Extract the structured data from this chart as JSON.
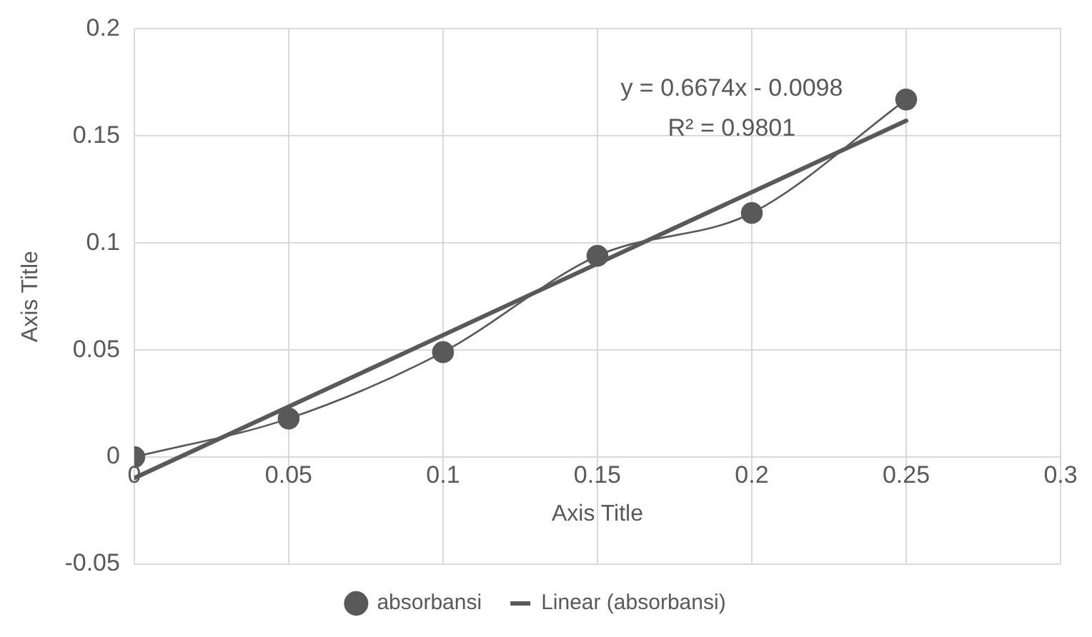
{
  "chart_data": {
    "type": "scatter",
    "xlabel": "Axis Title",
    "ylabel": "Axis Title",
    "xlim": [
      0,
      0.3
    ],
    "xticks": [
      0,
      0.05,
      0.1,
      0.15,
      0.2,
      0.25,
      0.3
    ],
    "ylim": [
      -0.05,
      0.2
    ],
    "yticks": [
      -0.05,
      0,
      0.05,
      0.1,
      0.15,
      0.2
    ],
    "grid": true,
    "legend": "bottom",
    "marker": "circle",
    "series": [
      {
        "name": "absorbansi",
        "type": "line",
        "color": "#595959",
        "x": [
          0,
          0.05,
          0.1,
          0.15,
          0.2,
          0.25
        ],
        "values": [
          0,
          0.018,
          0.049,
          0.094,
          0.114,
          0.167
        ]
      },
      {
        "name": "Linear (absorbansi)",
        "type": "line",
        "color": "#595959",
        "marker": "none",
        "x": [
          0,
          0.25
        ],
        "values": [
          -0.0098,
          0.1571
        ]
      }
    ],
    "annotations": [
      "y = 0.6674x - 0.0098",
      "R² = 0.9801"
    ]
  }
}
